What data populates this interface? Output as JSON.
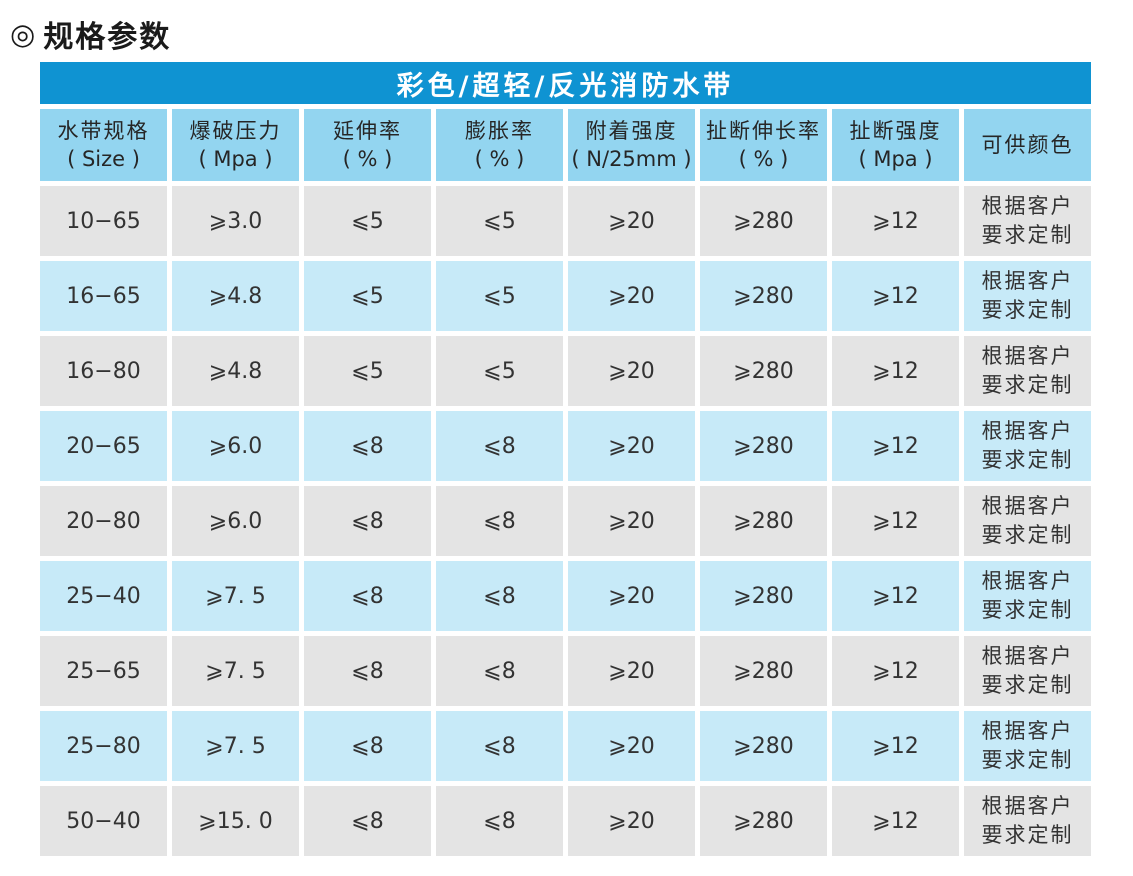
{
  "page_title": {
    "icon": "◎",
    "text": "规格参数"
  },
  "colors": {
    "band_blue": "#0f93d2",
    "header_blue": "#93d5f0",
    "row_blue": "#c7eaf8",
    "row_gray": "#e4e4e4",
    "band_text": "#ffffff"
  },
  "table": {
    "title": "彩色/超轻/反光消防水带",
    "columns": [
      {
        "line1": "水带规格",
        "line2": "( Size )"
      },
      {
        "line1": "爆破压力",
        "line2": "( Mpa )"
      },
      {
        "line1": "延伸率",
        "line2": "( % )"
      },
      {
        "line1": "膨胀率",
        "line2": "( % )"
      },
      {
        "line1": "附着强度",
        "line2": "( N/25mm )"
      },
      {
        "line1": "扯断伸长率",
        "line2": "( % )"
      },
      {
        "line1": "扯断强度",
        "line2": "( Mpa )"
      },
      {
        "line1": "可供颜色",
        "line2": ""
      }
    ],
    "rows": [
      {
        "size": "10−65",
        "burst": "⩾3.0",
        "elongation": "⩽5",
        "expansion": "⩽5",
        "adhesion": "⩾20",
        "break_elongation": "⩾280",
        "break_strength": "⩾12",
        "colors_line1": "根据客户",
        "colors_line2": "要求定制"
      },
      {
        "size": "16−65",
        "burst": "⩾4.8",
        "elongation": "⩽5",
        "expansion": "⩽5",
        "adhesion": "⩾20",
        "break_elongation": "⩾280",
        "break_strength": "⩾12",
        "colors_line1": "根据客户",
        "colors_line2": "要求定制"
      },
      {
        "size": "16−80",
        "burst": "⩾4.8",
        "elongation": "⩽5",
        "expansion": "⩽5",
        "adhesion": "⩾20",
        "break_elongation": "⩾280",
        "break_strength": "⩾12",
        "colors_line1": "根据客户",
        "colors_line2": "要求定制"
      },
      {
        "size": "20−65",
        "burst": "⩾6.0",
        "elongation": "⩽8",
        "expansion": "⩽8",
        "adhesion": "⩾20",
        "break_elongation": "⩾280",
        "break_strength": "⩾12",
        "colors_line1": "根据客户",
        "colors_line2": "要求定制"
      },
      {
        "size": "20−80",
        "burst": "⩾6.0",
        "elongation": "⩽8",
        "expansion": "⩽8",
        "adhesion": "⩾20",
        "break_elongation": "⩾280",
        "break_strength": "⩾12",
        "colors_line1": "根据客户",
        "colors_line2": "要求定制"
      },
      {
        "size": "25−40",
        "burst": "⩾7. 5",
        "elongation": "⩽8",
        "expansion": "⩽8",
        "adhesion": "⩾20",
        "break_elongation": "⩾280",
        "break_strength": "⩾12",
        "colors_line1": "根据客户",
        "colors_line2": "要求定制"
      },
      {
        "size": "25−65",
        "burst": "⩾7. 5",
        "elongation": "⩽8",
        "expansion": "⩽8",
        "adhesion": "⩾20",
        "break_elongation": "⩾280",
        "break_strength": "⩾12",
        "colors_line1": "根据客户",
        "colors_line2": "要求定制"
      },
      {
        "size": "25−80",
        "burst": "⩾7. 5",
        "elongation": "⩽8",
        "expansion": "⩽8",
        "adhesion": "⩾20",
        "break_elongation": "⩾280",
        "break_strength": "⩾12",
        "colors_line1": "根据客户",
        "colors_line2": "要求定制"
      },
      {
        "size": "50−40",
        "burst": "⩾15. 0",
        "elongation": "⩽8",
        "expansion": "⩽8",
        "adhesion": "⩾20",
        "break_elongation": "⩾280",
        "break_strength": "⩾12",
        "colors_line1": "根据客户",
        "colors_line2": "要求定制"
      }
    ]
  }
}
